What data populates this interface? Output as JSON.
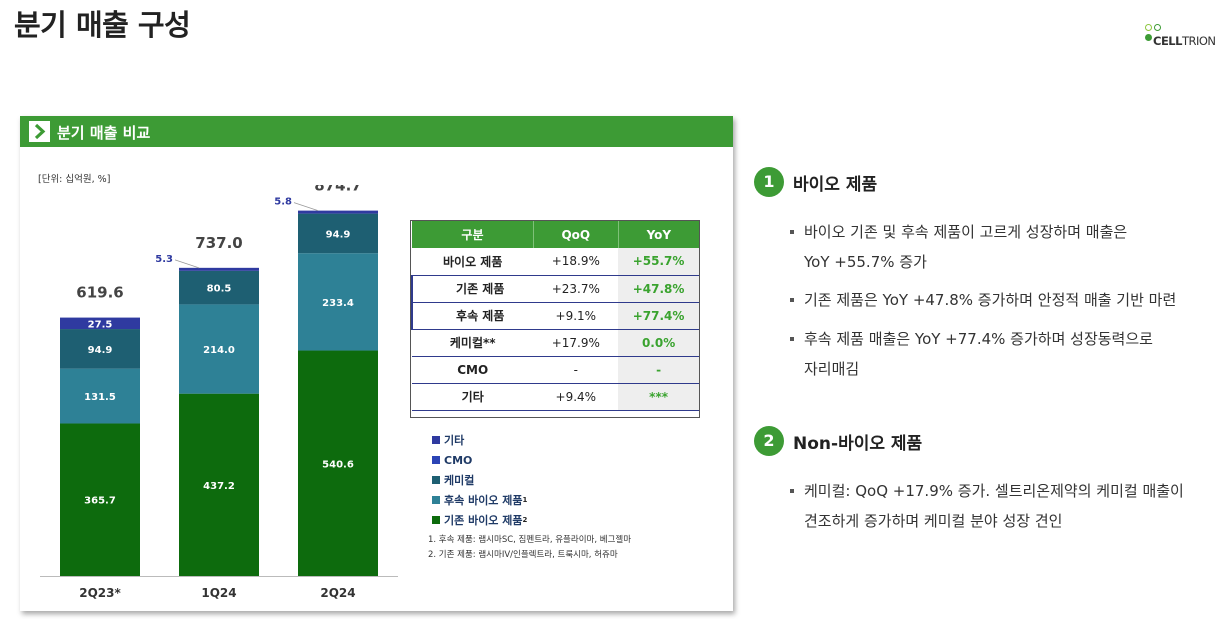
{
  "page": {
    "title": "분기 매출 구성"
  },
  "logo": {
    "brand_bold": "CELL",
    "brand_light": "TRION",
    "dot_colors": [
      "#8dc63f",
      "#3d9b35",
      "#3d9b35"
    ]
  },
  "card": {
    "title": "분기 매출 비교",
    "unit": "[단위: 십억원, %]"
  },
  "chart_data": {
    "type": "bar",
    "stacked": true,
    "categories": [
      "2Q23*",
      "1Q24",
      "2Q24"
    ],
    "series": [
      {
        "name": "기존 바이오 제품",
        "color": "#0d6b0d",
        "values": [
          365.7,
          437.2,
          540.6
        ]
      },
      {
        "name": "후속 바이오 제품",
        "color": "#2e8196",
        "values": [
          131.5,
          214.0,
          233.4
        ]
      },
      {
        "name": "케미컬",
        "color": "#1e5f72",
        "values": [
          94.9,
          80.5,
          94.9
        ]
      },
      {
        "name": "CMO",
        "color": "#2b44b5",
        "values": [
          0,
          0,
          0
        ]
      },
      {
        "name": "기타",
        "color": "#2f3aa0",
        "values": [
          27.5,
          5.3,
          5.8
        ]
      }
    ],
    "totals": [
      "619.6",
      "737.0",
      "874.7"
    ],
    "data_labels": [
      [
        "365.7",
        "437.2",
        "540.6"
      ],
      [
        "131.5",
        "214.0",
        "233.4"
      ],
      [
        "94.9",
        "80.5",
        "94.9"
      ],
      [
        "",
        "",
        ""
      ],
      [
        "27.5",
        "5.3",
        "5.8"
      ]
    ],
    "ylim": [
      0,
      900
    ],
    "legend_position": "right",
    "grid": false
  },
  "table": {
    "headers": [
      "구분",
      "QoQ",
      "YoY"
    ],
    "rows": [
      {
        "label": "바이오 제품",
        "qoq": "+18.9%",
        "yoy": "+55.7%",
        "sub": false
      },
      {
        "label": "기존 제품",
        "qoq": "+23.7%",
        "yoy": "+47.8%",
        "sub": true
      },
      {
        "label": "후속 제품",
        "qoq": "+9.1%",
        "yoy": "+77.4%",
        "sub": true
      },
      {
        "label": "케미컬**",
        "qoq": "+17.9%",
        "yoy": "0.0%",
        "sub": false
      },
      {
        "label": "CMO",
        "qoq": "-",
        "yoy": "-",
        "sub": false
      },
      {
        "label": "기타",
        "qoq": "+9.4%",
        "yoy": "***",
        "sub": false
      }
    ]
  },
  "legend": [
    {
      "label": "기타",
      "sup": "",
      "color": "#2f3aa0"
    },
    {
      "label": "CMO",
      "sup": "",
      "color": "#2b44b5"
    },
    {
      "label": "케미컬",
      "sup": "",
      "color": "#1e5f72"
    },
    {
      "label": "후속 바이오 제품",
      "sup": "1",
      "color": "#2e8196"
    },
    {
      "label": "기존 바이오 제품",
      "sup": "2",
      "color": "#0d6b0d"
    }
  ],
  "footnotes": [
    "1. 후속 제품: 램시마SC, 짐펜트라, 유플라이마, 베그젤마",
    "2. 기존 제품: 램시마IV/인플렉트라, 트룩시마, 허쥬마"
  ],
  "sections": [
    {
      "num": "1",
      "title": "바이오 제품",
      "bullets": [
        [
          "바이오 기존 및 후속 제품이 고르게 성장하며 매출은",
          "YoY +55.7% 증가"
        ],
        [
          "기존 제품은 YoY +47.8% 증가하며 안정적 매출 기반 마련"
        ],
        [
          "후속 제품 매출은 YoY +77.4% 증가하며 성장동력으로",
          "자리매김"
        ]
      ]
    },
    {
      "num": "2",
      "title": "Non-바이오 제품",
      "bullets": [
        [
          "케미컬: QoQ +17.9% 증가. 셀트리온제약의 케미컬 매출이",
          "견조하게 증가하며 케미컬 분야 성장 견인"
        ]
      ]
    }
  ]
}
